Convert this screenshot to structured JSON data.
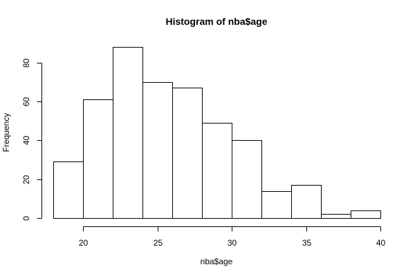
{
  "chart_data": {
    "type": "bar",
    "title": "Histogram of nba$age",
    "xlabel": "nba$age",
    "ylabel": "Frequency",
    "bins": [
      {
        "from": 18,
        "to": 20,
        "count": 29
      },
      {
        "from": 20,
        "to": 22,
        "count": 61
      },
      {
        "from": 22,
        "to": 24,
        "count": 88
      },
      {
        "from": 24,
        "to": 26,
        "count": 70
      },
      {
        "from": 26,
        "to": 28,
        "count": 67
      },
      {
        "from": 28,
        "to": 30,
        "count": 49
      },
      {
        "from": 30,
        "to": 32,
        "count": 40
      },
      {
        "from": 32,
        "to": 34,
        "count": 14
      },
      {
        "from": 34,
        "to": 36,
        "count": 17
      },
      {
        "from": 36,
        "to": 38,
        "count": 2
      },
      {
        "from": 38,
        "to": 40,
        "count": 4
      }
    ],
    "xticks": [
      20,
      25,
      30,
      35,
      40
    ],
    "yticks": [
      0,
      20,
      40,
      60,
      80
    ],
    "xlim": [
      18,
      40
    ],
    "ylim": [
      0,
      88
    ],
    "grid": false
  }
}
